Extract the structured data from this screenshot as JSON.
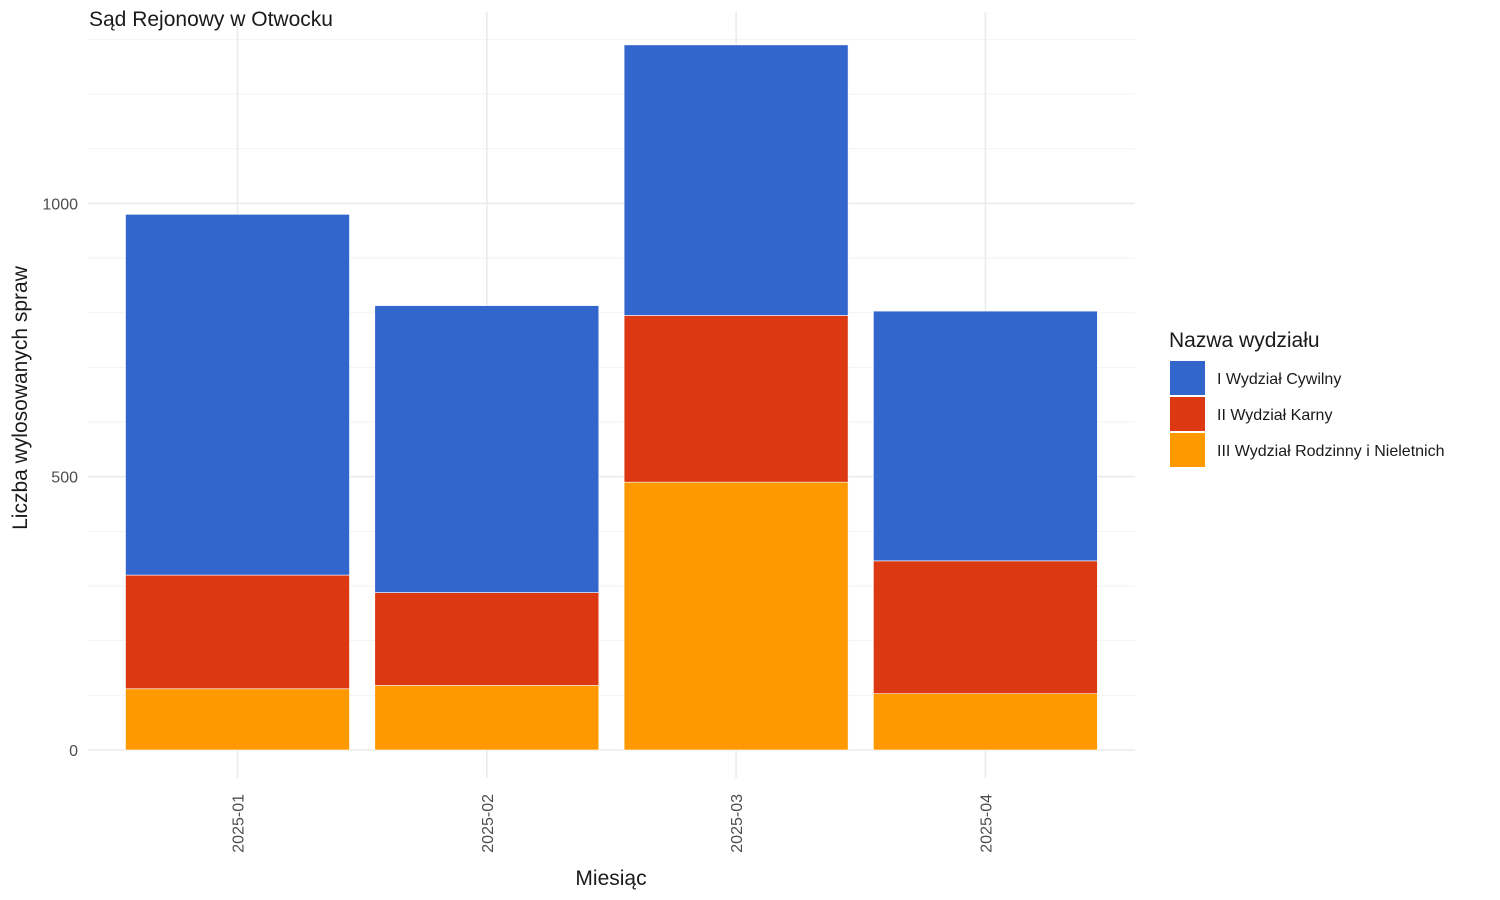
{
  "chart_data": {
    "type": "bar",
    "stacked": true,
    "title": "Sąd Rejonowy w Otwocku",
    "xlabel": "Miesiąc",
    "ylabel": "Liczba wylosowanych spraw",
    "categories": [
      "2025-01",
      "2025-02",
      "2025-03",
      "2025-04"
    ],
    "series": [
      {
        "name": "III Wydział Rodzinny i Nieletnich",
        "color": "#FF9900",
        "values": [
          112,
          118,
          490,
          103
        ]
      },
      {
        "name": "II Wydział Karny",
        "color": "#DC3912",
        "values": [
          208,
          170,
          305,
          243
        ]
      },
      {
        "name": "I Wydział Cywilny",
        "color": "#3366CC",
        "values": [
          660,
          525,
          495,
          457
        ]
      }
    ],
    "ylim": [
      0,
      1290
    ],
    "yticks": [
      0,
      500,
      1000
    ],
    "grid": true,
    "legend": {
      "title": "Nazwa wydziału",
      "position": "right",
      "order": [
        "I Wydział Cywilny",
        "II Wydział Karny",
        "III Wydział Rodzinny i Nieletnich"
      ]
    }
  }
}
